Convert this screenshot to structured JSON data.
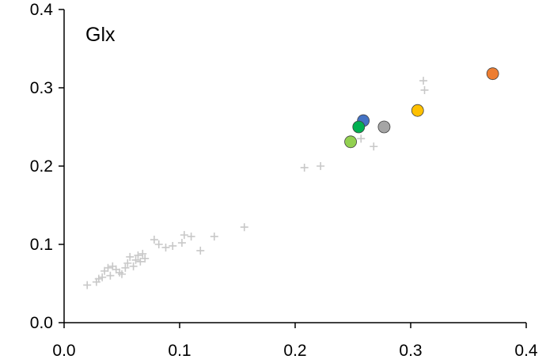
{
  "chart_data": {
    "type": "scatter",
    "annotation": "Glx",
    "xlim": [
      0,
      0.4
    ],
    "ylim": [
      0,
      0.4
    ],
    "x_ticks": [
      "0.0",
      "0.1",
      "0.2",
      "0.3",
      "0.4"
    ],
    "y_ticks": [
      "0.0",
      "0.1",
      "0.2",
      "0.3",
      "0.4"
    ],
    "grid": false,
    "legend": "none",
    "series": [
      {
        "marker": "plus",
        "color": "#c8c8c8",
        "points": [
          [
            0.02,
            0.048
          ],
          [
            0.028,
            0.052
          ],
          [
            0.03,
            0.056
          ],
          [
            0.033,
            0.058
          ],
          [
            0.035,
            0.066
          ],
          [
            0.038,
            0.07
          ],
          [
            0.04,
            0.06
          ],
          [
            0.042,
            0.072
          ],
          [
            0.045,
            0.068
          ],
          [
            0.048,
            0.064
          ],
          [
            0.05,
            0.062
          ],
          [
            0.053,
            0.07
          ],
          [
            0.055,
            0.076
          ],
          [
            0.057,
            0.084
          ],
          [
            0.06,
            0.072
          ],
          [
            0.062,
            0.08
          ],
          [
            0.064,
            0.086
          ],
          [
            0.066,
            0.078
          ],
          [
            0.068,
            0.088
          ],
          [
            0.07,
            0.082
          ],
          [
            0.078,
            0.106
          ],
          [
            0.082,
            0.1
          ],
          [
            0.088,
            0.096
          ],
          [
            0.094,
            0.098
          ],
          [
            0.102,
            0.102
          ],
          [
            0.104,
            0.112
          ],
          [
            0.11,
            0.11
          ],
          [
            0.118,
            0.092
          ],
          [
            0.13,
            0.11
          ],
          [
            0.156,
            0.122
          ],
          [
            0.208,
            0.198
          ],
          [
            0.222,
            0.2
          ],
          [
            0.257,
            0.235
          ],
          [
            0.268,
            0.225
          ],
          [
            0.311,
            0.309
          ],
          [
            0.312,
            0.297
          ]
        ]
      },
      {
        "marker": "circle",
        "color": "#ed7d31",
        "points": [
          [
            0.371,
            0.318
          ]
        ]
      },
      {
        "marker": "circle",
        "color": "#ffc000",
        "points": [
          [
            0.306,
            0.271
          ]
        ]
      },
      {
        "marker": "circle",
        "color": "#a5a5a5",
        "points": [
          [
            0.277,
            0.25
          ]
        ]
      },
      {
        "marker": "circle",
        "color": "#4472c4",
        "points": [
          [
            0.259,
            0.258
          ]
        ]
      },
      {
        "marker": "circle",
        "color": "#00b050",
        "points": [
          [
            0.255,
            0.25
          ]
        ]
      },
      {
        "marker": "circle",
        "color": "#92d050",
        "points": [
          [
            0.248,
            0.231
          ]
        ]
      }
    ]
  }
}
